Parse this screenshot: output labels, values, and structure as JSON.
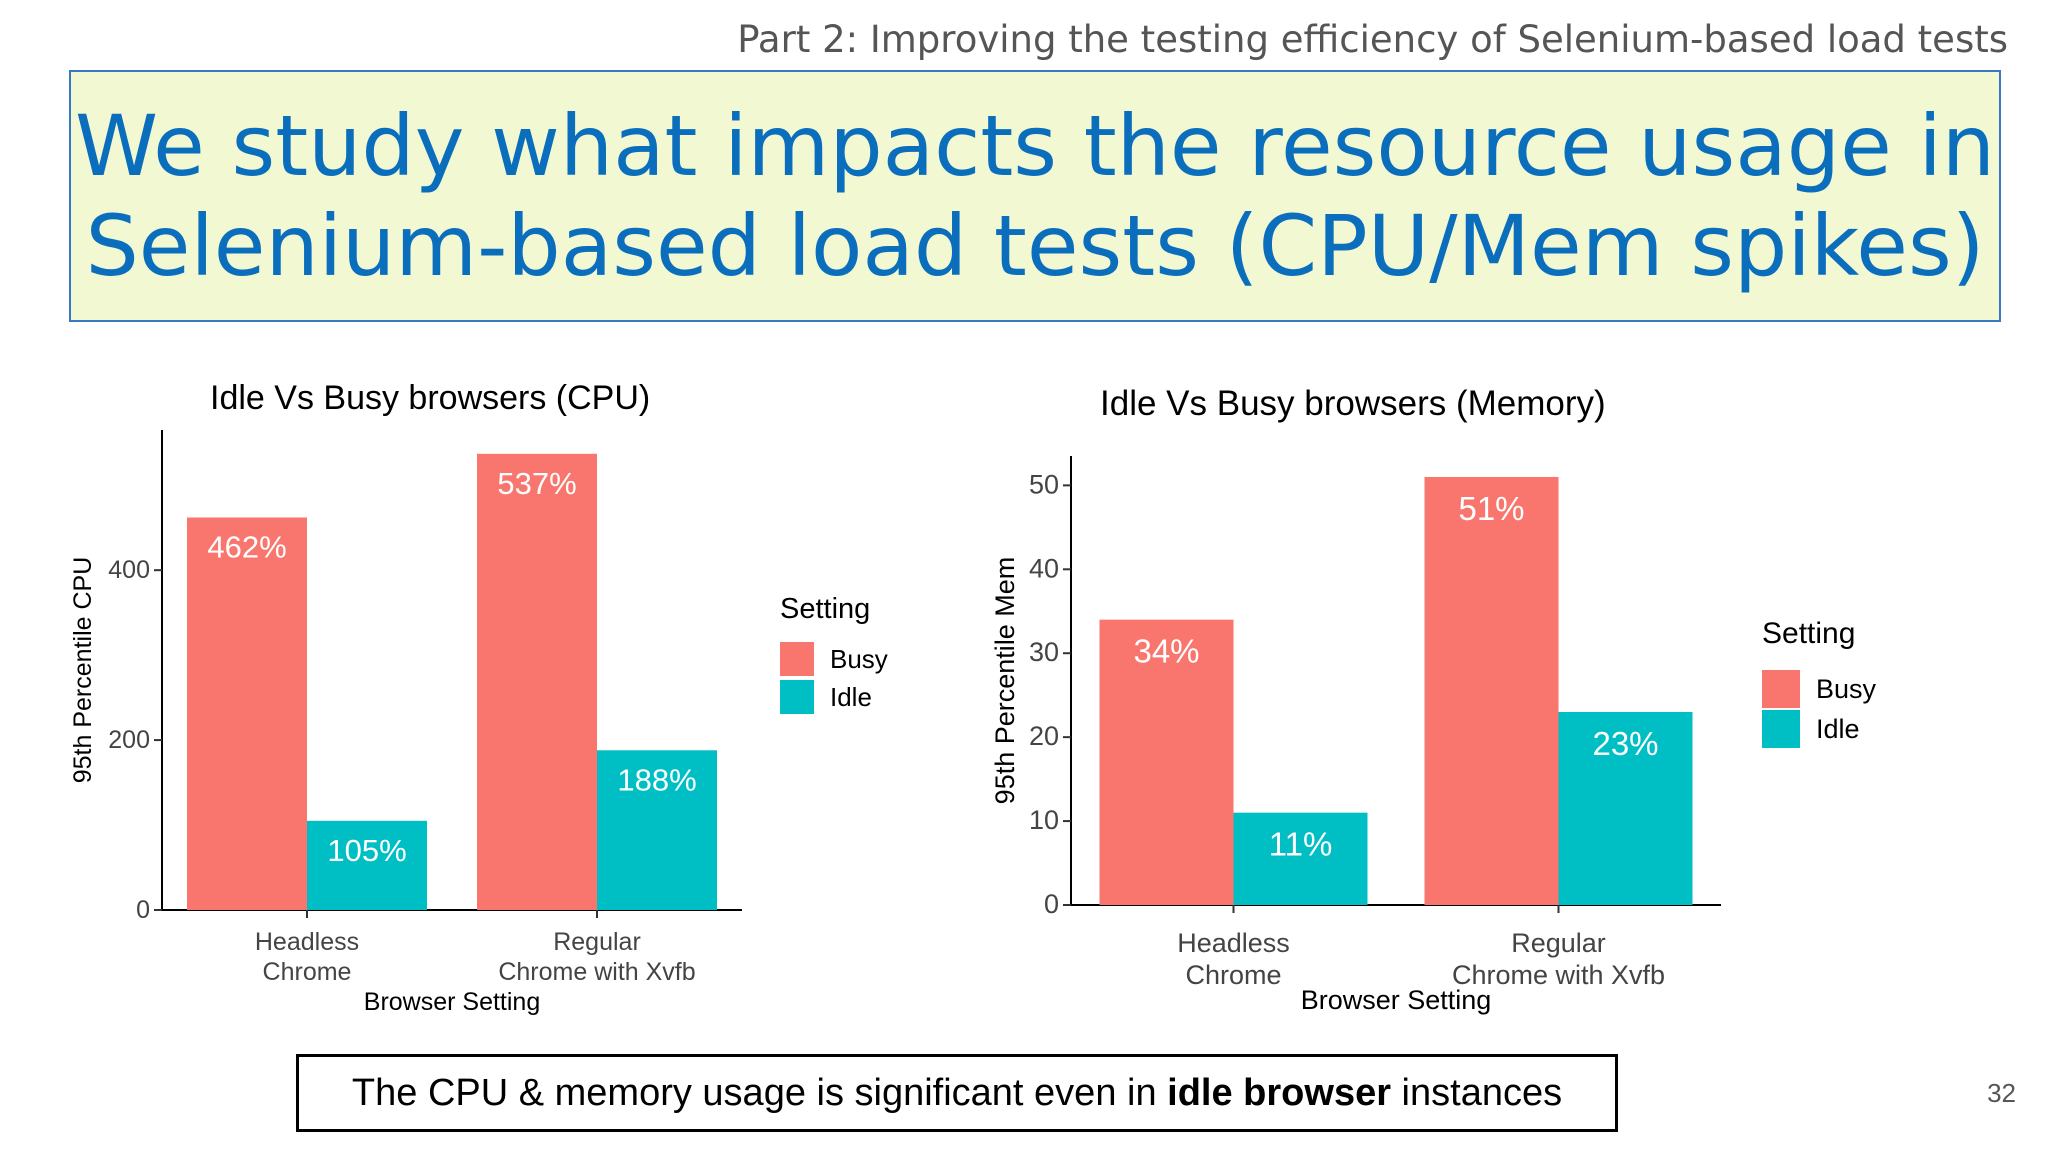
{
  "header": {
    "subtitle": "Part 2: Improving the testing efficiency of Selenium-based load tests",
    "headline_line1": "We study what impacts the resource usage in",
    "headline_line2": "Selenium-based load tests (CPU/Mem spikes)"
  },
  "colors": {
    "busy": "#f8766d",
    "idle": "#00bfc4",
    "headline_bg": "#f1f8d2",
    "headline_text": "#0a6ebd"
  },
  "chart_data": [
    {
      "type": "bar",
      "title": "Idle Vs Busy browsers (CPU)",
      "xlabel": "Browser Setting",
      "ylabel": "95th Percentile CPU",
      "categories": [
        [
          "Headless",
          "Chrome"
        ],
        [
          "Regular",
          "Chrome with Xvfb"
        ]
      ],
      "series": [
        {
          "name": "Busy",
          "values": [
            462,
            537
          ],
          "labels": [
            "462%",
            "537%"
          ]
        },
        {
          "name": "Idle",
          "values": [
            105,
            188
          ],
          "labels": [
            "105%",
            "188%"
          ]
        }
      ],
      "yticks": [
        0,
        200,
        400
      ],
      "ylim": [
        0,
        565
      ],
      "legend_title": "Setting",
      "legend_position": "right",
      "grid": false
    },
    {
      "type": "bar",
      "title": "Idle Vs Busy browsers (Memory)",
      "xlabel": "Browser Setting",
      "ylabel": "95th Percentile Mem",
      "categories": [
        [
          "Headless",
          "Chrome"
        ],
        [
          "Regular",
          "Chrome with Xvfb"
        ]
      ],
      "series": [
        {
          "name": "Busy",
          "values": [
            34,
            51
          ],
          "labels": [
            "34%",
            "51%"
          ]
        },
        {
          "name": "Idle",
          "values": [
            11,
            23
          ],
          "labels": [
            "11%",
            "23%"
          ]
        }
      ],
      "yticks": [
        0,
        10,
        20,
        30,
        40,
        50
      ],
      "ylim": [
        0,
        53.5
      ],
      "legend_title": "Setting",
      "legend_position": "right",
      "grid": false
    }
  ],
  "footer": {
    "note_before": "The CPU & memory usage is significant even in ",
    "note_bold": "idle browser",
    "note_after": " instances",
    "page_number": "32"
  }
}
